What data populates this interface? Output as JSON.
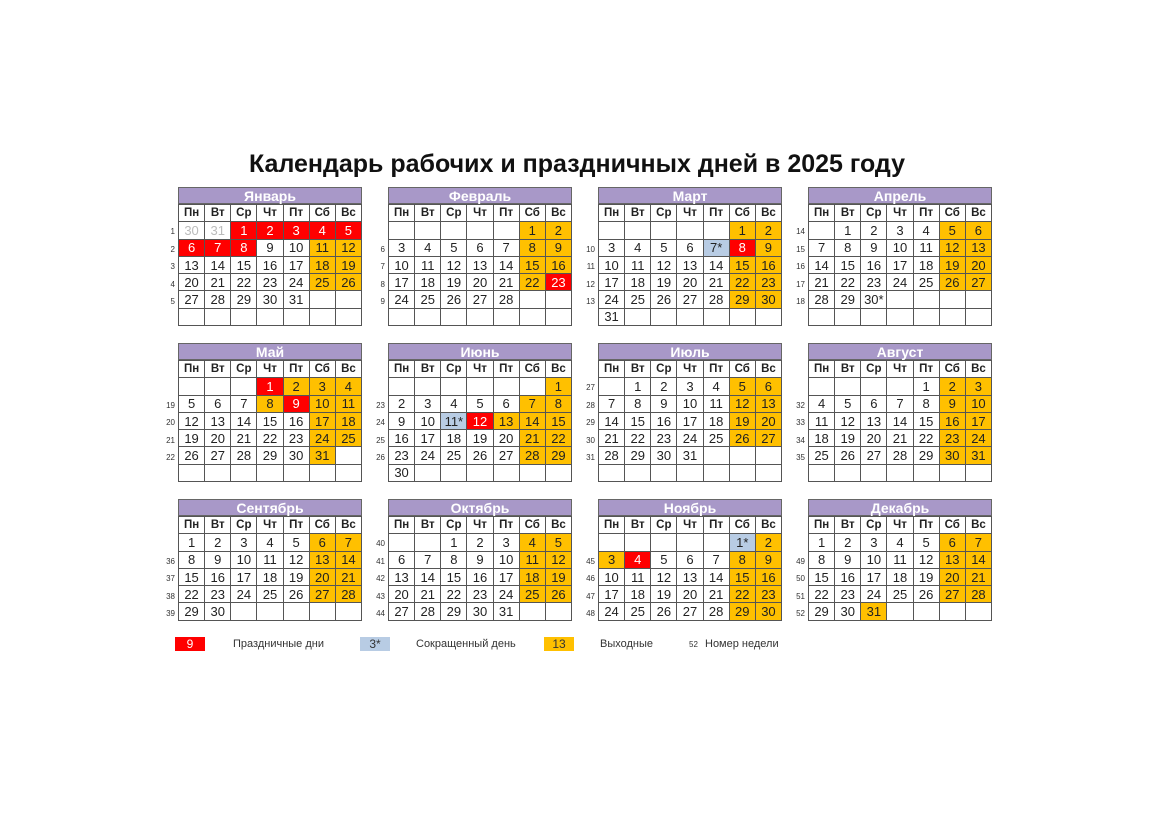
{
  "title": "Календарь рабочих и праздничных дней в 2025 году",
  "weekdays": [
    "Пн",
    "Вт",
    "Ср",
    "Чт",
    "Пт",
    "Сб",
    "Вс"
  ],
  "colors": {
    "holiday": "#ff0000",
    "weekend": "#ffc000",
    "short": "#b8cce4",
    "header": "#a898c8"
  },
  "cell_code_legend": {
    "h": "holiday",
    "w": "weekend",
    "s": "short",
    "g": "other-month"
  },
  "months": [
    {
      "name": "Январь",
      "weeks": [
        "1",
        "2",
        "3",
        "4",
        "5",
        ""
      ],
      "rows": [
        [
          "30:g",
          "31:g",
          "1:h",
          "2:h",
          "3:h",
          "4:h",
          "5:h"
        ],
        [
          "6:h",
          "7:h",
          "8:h",
          "9",
          "10",
          "11:w",
          "12:w"
        ],
        [
          "13",
          "14",
          "15",
          "16",
          "17",
          "18:w",
          "19:w"
        ],
        [
          "20",
          "21",
          "22",
          "23",
          "24",
          "25:w",
          "26:w"
        ],
        [
          "27",
          "28",
          "29",
          "30",
          "31",
          "",
          ""
        ],
        [
          "",
          "",
          "",
          "",
          "",
          "",
          ""
        ]
      ]
    },
    {
      "name": "Февраль",
      "weeks": [
        "",
        "6",
        "7",
        "8",
        "9",
        ""
      ],
      "rows": [
        [
          "",
          "",
          "",
          "",
          "",
          "1:w",
          "2:w"
        ],
        [
          "3",
          "4",
          "5",
          "6",
          "7",
          "8:w",
          "9:w"
        ],
        [
          "10",
          "11",
          "12",
          "13",
          "14",
          "15:w",
          "16:w"
        ],
        [
          "17",
          "18",
          "19",
          "20",
          "21",
          "22:w",
          "23:h"
        ],
        [
          "24",
          "25",
          "26",
          "27",
          "28",
          "",
          ""
        ],
        [
          "",
          "",
          "",
          "",
          "",
          "",
          ""
        ]
      ]
    },
    {
      "name": "Март",
      "weeks": [
        "",
        "10",
        "11",
        "12",
        "13",
        ""
      ],
      "rows": [
        [
          "",
          "",
          "",
          "",
          "",
          "1:w",
          "2:w"
        ],
        [
          "3",
          "4",
          "5",
          "6",
          "7*:s",
          "8:h",
          "9:w"
        ],
        [
          "10",
          "11",
          "12",
          "13",
          "14",
          "15:w",
          "16:w"
        ],
        [
          "17",
          "18",
          "19",
          "20",
          "21",
          "22:w",
          "23:w"
        ],
        [
          "24",
          "25",
          "26",
          "27",
          "28",
          "29:w",
          "30:w"
        ],
        [
          "31",
          "",
          "",
          "",
          "",
          "",
          ""
        ]
      ]
    },
    {
      "name": "Апрель",
      "weeks": [
        "14",
        "15",
        "16",
        "17",
        "18",
        ""
      ],
      "rows": [
        [
          "",
          "1",
          "2",
          "3",
          "4",
          "5:w",
          "6:w"
        ],
        [
          "7",
          "8",
          "9",
          "10",
          "11",
          "12:w",
          "13:w"
        ],
        [
          "14",
          "15",
          "16",
          "17",
          "18",
          "19:w",
          "20:w"
        ],
        [
          "21",
          "22",
          "23",
          "24",
          "25",
          "26:w",
          "27:w"
        ],
        [
          "28",
          "29",
          "30*",
          "",
          "",
          "",
          ""
        ],
        [
          "",
          "",
          "",
          "",
          "",
          "",
          ""
        ]
      ]
    },
    {
      "name": "Май",
      "weeks": [
        "",
        "19",
        "20",
        "21",
        "22",
        ""
      ],
      "rows": [
        [
          "",
          "",
          "",
          "1:h",
          "2:w",
          "3:w",
          "4:w"
        ],
        [
          "5",
          "6",
          "7",
          "8:w",
          "9:h",
          "10:w",
          "11:w"
        ],
        [
          "12",
          "13",
          "14",
          "15",
          "16",
          "17:w",
          "18:w"
        ],
        [
          "19",
          "20",
          "21",
          "22",
          "23",
          "24:w",
          "25:w"
        ],
        [
          "26",
          "27",
          "28",
          "29",
          "30",
          "31:w",
          ""
        ],
        [
          "",
          "",
          "",
          "",
          "",
          "",
          ""
        ]
      ]
    },
    {
      "name": "Июнь",
      "weeks": [
        "",
        "23",
        "24",
        "25",
        "26",
        ""
      ],
      "rows": [
        [
          "",
          "",
          "",
          "",
          "",
          "",
          "1:w"
        ],
        [
          "2",
          "3",
          "4",
          "5",
          "6",
          "7:w",
          "8:w"
        ],
        [
          "9",
          "10",
          "11*:s",
          "12:h",
          "13:w",
          "14:w",
          "15:w"
        ],
        [
          "16",
          "17",
          "18",
          "19",
          "20",
          "21:w",
          "22:w"
        ],
        [
          "23",
          "24",
          "25",
          "26",
          "27",
          "28:w",
          "29:w"
        ],
        [
          "30",
          "",
          "",
          "",
          "",
          "",
          ""
        ]
      ]
    },
    {
      "name": "Июль",
      "weeks": [
        "27",
        "28",
        "29",
        "30",
        "31",
        ""
      ],
      "rows": [
        [
          "",
          "1",
          "2",
          "3",
          "4",
          "5:w",
          "6:w"
        ],
        [
          "7",
          "8",
          "9",
          "10",
          "11",
          "12:w",
          "13:w"
        ],
        [
          "14",
          "15",
          "16",
          "17",
          "18",
          "19:w",
          "20:w"
        ],
        [
          "21",
          "22",
          "23",
          "24",
          "25",
          "26:w",
          "27:w"
        ],
        [
          "28",
          "29",
          "30",
          "31",
          "",
          "",
          ""
        ],
        [
          "",
          "",
          "",
          "",
          "",
          "",
          ""
        ]
      ]
    },
    {
      "name": "Август",
      "weeks": [
        "",
        "32",
        "33",
        "34",
        "35",
        ""
      ],
      "rows": [
        [
          "",
          "",
          "",
          "",
          "1",
          "2:w",
          "3:w"
        ],
        [
          "4",
          "5",
          "6",
          "7",
          "8",
          "9:w",
          "10:w"
        ],
        [
          "11",
          "12",
          "13",
          "14",
          "15",
          "16:w",
          "17:w"
        ],
        [
          "18",
          "19",
          "20",
          "21",
          "22",
          "23:w",
          "24:w"
        ],
        [
          "25",
          "26",
          "27",
          "28",
          "29",
          "30:w",
          "31:w"
        ],
        [
          "",
          "",
          "",
          "",
          "",
          "",
          ""
        ]
      ]
    },
    {
      "name": "Сентябрь",
      "weeks": [
        "",
        "36",
        "37",
        "38",
        "39"
      ],
      "rows": [
        [
          "1",
          "2",
          "3",
          "4",
          "5",
          "6:w",
          "7:w"
        ],
        [
          "8",
          "9",
          "10",
          "11",
          "12",
          "13:w",
          "14:w"
        ],
        [
          "15",
          "16",
          "17",
          "18",
          "19",
          "20:w",
          "21:w"
        ],
        [
          "22",
          "23",
          "24",
          "25",
          "26",
          "27:w",
          "28:w"
        ],
        [
          "29",
          "30",
          "",
          "",
          "",
          "",
          ""
        ]
      ]
    },
    {
      "name": "Октябрь",
      "weeks": [
        "40",
        "41",
        "42",
        "43",
        "44"
      ],
      "rows": [
        [
          "",
          "",
          "1",
          "2",
          "3",
          "4:w",
          "5:w"
        ],
        [
          "6",
          "7",
          "8",
          "9",
          "10",
          "11:w",
          "12:w"
        ],
        [
          "13",
          "14",
          "15",
          "16",
          "17",
          "18:w",
          "19:w"
        ],
        [
          "20",
          "21",
          "22",
          "23",
          "24",
          "25:w",
          "26:w"
        ],
        [
          "27",
          "28",
          "29",
          "30",
          "31",
          "",
          ""
        ]
      ]
    },
    {
      "name": "Ноябрь",
      "weeks": [
        "",
        "45",
        "46",
        "47",
        "48"
      ],
      "rows": [
        [
          "",
          "",
          "",
          "",
          "",
          "1*:s",
          "2:w"
        ],
        [
          "3:w",
          "4:h",
          "5",
          "6",
          "7",
          "8:w",
          "9:w"
        ],
        [
          "10",
          "11",
          "12",
          "13",
          "14",
          "15:w",
          "16:w"
        ],
        [
          "17",
          "18",
          "19",
          "20",
          "21",
          "22:w",
          "23:w"
        ],
        [
          "24",
          "25",
          "26",
          "27",
          "28",
          "29:w",
          "30:w"
        ]
      ]
    },
    {
      "name": "Декабрь",
      "weeks": [
        "",
        "49",
        "50",
        "51",
        "52"
      ],
      "rows": [
        [
          "1",
          "2",
          "3",
          "4",
          "5",
          "6:w",
          "7:w"
        ],
        [
          "8",
          "9",
          "10",
          "11",
          "12",
          "13:w",
          "14:w"
        ],
        [
          "15",
          "16",
          "17",
          "18",
          "19",
          "20:w",
          "21:w"
        ],
        [
          "22",
          "23",
          "24",
          "25",
          "26",
          "27:w",
          "28:w"
        ],
        [
          "29",
          "30",
          "31:w",
          "",
          "",
          "",
          ""
        ]
      ]
    }
  ],
  "legend": {
    "holiday_sample": "9",
    "holiday_label": "Праздничные дни",
    "short_sample": "3*",
    "short_label": "Сокращенный день",
    "weekend_sample": "13",
    "weekend_label": "Выходные",
    "week_sample": "52",
    "week_label": "Номер недели"
  }
}
